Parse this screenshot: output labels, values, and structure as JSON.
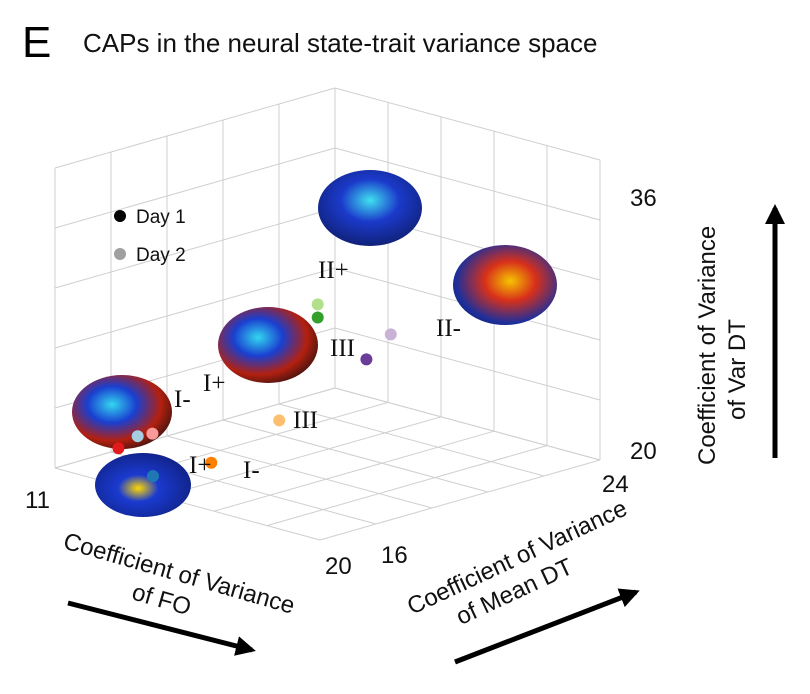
{
  "panel_letter": "E",
  "title": "CAPs in the neural state-trait variance space",
  "chart_data": {
    "type": "scatter",
    "projection": "3d",
    "title": "CAPs in the neural state-trait variance space",
    "axes": {
      "x": {
        "label_line1": "Coefficient of Variance",
        "label_line2": "of FO",
        "range": [
          11,
          20
        ],
        "ticks": [
          "11",
          "20"
        ]
      },
      "y": {
        "label_line1": "Coefficient of Variance",
        "label_line2": "of Mean DT",
        "range": [
          16,
          24
        ],
        "ticks": [
          "16",
          "24"
        ]
      },
      "z": {
        "label_line1": "Coefficient of Variance",
        "label_line2": "of Var DT",
        "range": [
          20,
          36
        ],
        "ticks": [
          "20",
          "36"
        ]
      }
    },
    "grid": true,
    "legend": {
      "placement": "top-left",
      "entries": [
        {
          "label": "Day 1",
          "color": "#000000"
        },
        {
          "label": "Day 2",
          "color": "#a0a0a0"
        }
      ]
    },
    "series": [
      {
        "name": "I+",
        "points": [
          {
            "day": "Day 1",
            "color": "#e31a1c",
            "x": 12.5,
            "y": 17,
            "z": 22
          },
          {
            "day": "Day 2",
            "color": "#fb9a99",
            "x": 13,
            "y": 18,
            "z": 23
          }
        ]
      },
      {
        "name": "I-",
        "points": [
          {
            "day": "Day 1",
            "color": "#1f78b4",
            "x": 14,
            "y": 16.5,
            "z": 21
          },
          {
            "day": "Day 2",
            "color": "#a6cee3",
            "x": 12.5,
            "y": 18,
            "z": 22.5
          }
        ]
      },
      {
        "name": "III",
        "points": [
          {
            "day": "Day 1",
            "color": "#ff7f00",
            "x": 15,
            "y": 18,
            "z": 22
          },
          {
            "day": "Day 2",
            "color": "#fdbf6f",
            "x": 16,
            "y": 20,
            "z": 25
          }
        ]
      },
      {
        "name": "II+",
        "points": [
          {
            "day": "Day 1",
            "color": "#33a02c",
            "x": 16,
            "y": 22,
            "z": 32
          },
          {
            "day": "Day 2",
            "color": "#b2df8a",
            "x": 16,
            "y": 22,
            "z": 33
          }
        ]
      },
      {
        "name": "II-",
        "points": [
          {
            "day": "Day 1",
            "color": "#6a3d9a",
            "x": 17,
            "y": 23,
            "z": 29
          },
          {
            "day": "Day 2",
            "color": "#cab2d6",
            "x": 17.5,
            "y": 23.5,
            "z": 31
          }
        ]
      }
    ],
    "point_labels": [
      "II+",
      "II-",
      "III",
      "I+",
      "I-",
      "III",
      "I+",
      "I-"
    ]
  }
}
